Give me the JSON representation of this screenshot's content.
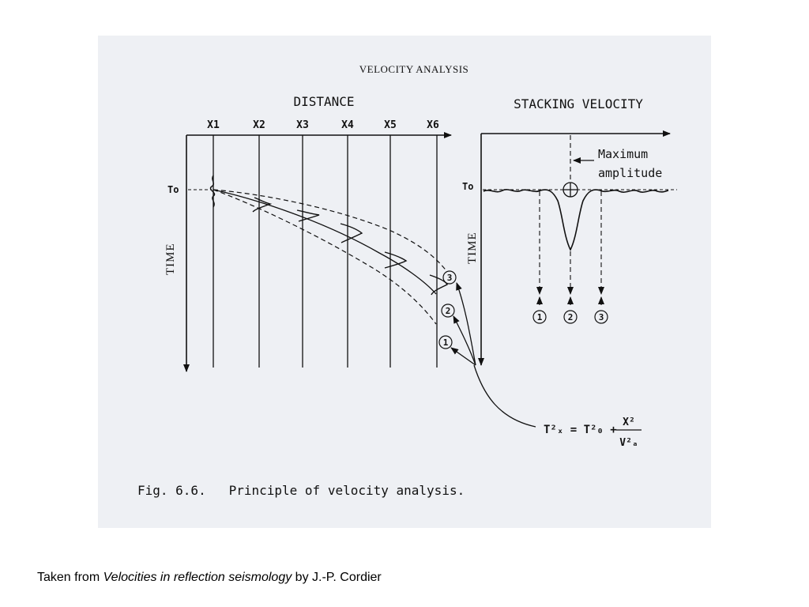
{
  "figure": {
    "title": "VELOCITY ANALYSIS",
    "caption": "Fig. 6.6.   Principle of velocity analysis."
  },
  "left_panel": {
    "axis_title": "DISTANCE",
    "time_label": "TIME",
    "t0_label": "To",
    "traces": [
      "X1",
      "X2",
      "X3",
      "X4",
      "X5",
      "X6"
    ],
    "curve_markers": [
      "3",
      "2",
      "1"
    ]
  },
  "right_panel": {
    "axis_title": "STACKING VELOCITY",
    "time_label": "TIME",
    "t0_label": "To",
    "annotation_line1": "Maximum",
    "annotation_line2": "amplitude",
    "markers": [
      "1",
      "2",
      "3"
    ]
  },
  "formula": {
    "lhs": "T²ₓ = T²₀ +",
    "numerator": "X²",
    "denominator": "V²ₐ"
  },
  "source_line": {
    "prefix": "Taken from ",
    "title": "Velocities in reflection seismology",
    "suffix": " by J.-P. Cordier"
  }
}
